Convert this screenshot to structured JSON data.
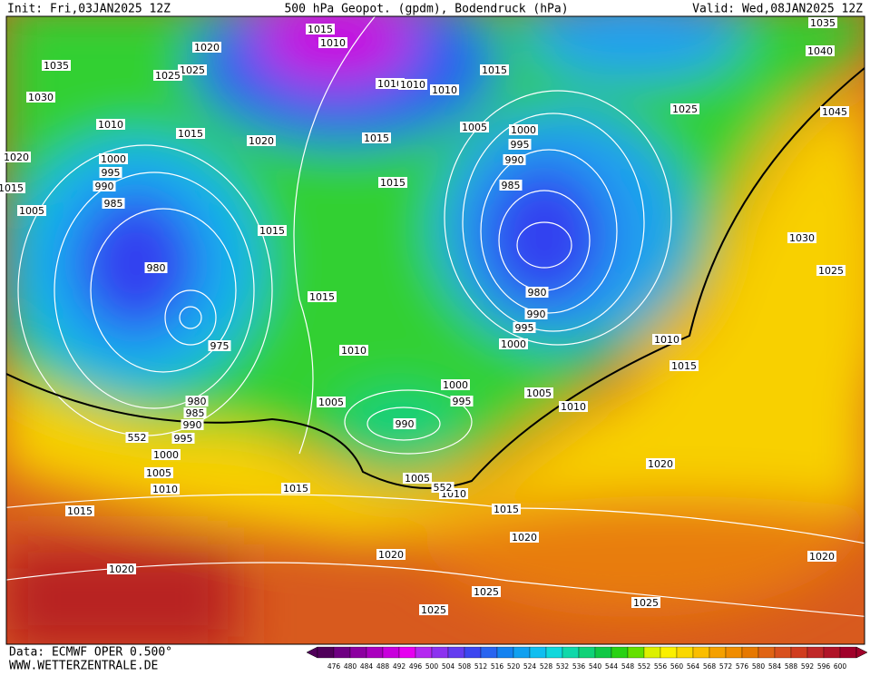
{
  "header": {
    "init": "Init: Fri,03JAN2025 12Z",
    "title": "500 hPa Geopot. (gpdm), Bodendruck (hPa)",
    "valid": "Valid: Wed,08JAN2025 12Z"
  },
  "footer": {
    "data": "Data: ECMWF OPER 0.500°",
    "site": "WWW.WETTERZENTRALE.DE"
  },
  "isobar_labels": [
    "1035",
    "1030",
    "1020",
    "1015",
    "1005",
    "1010",
    "1000",
    "995",
    "990",
    "985",
    "980",
    "975",
    "1020",
    "1025",
    "1025",
    "1015",
    "1020",
    "1015",
    "1010",
    "1015",
    "1015",
    "1015",
    "1010",
    "1010",
    "1010",
    "1015",
    "1005",
    "1000",
    "995",
    "990",
    "985",
    "980",
    "990",
    "995",
    "1000",
    "1015",
    "1010",
    "1005",
    "1000",
    "995",
    "990",
    "1005",
    "1010",
    "1010",
    "1015",
    "1020",
    "1025",
    "1035",
    "1040",
    "1045",
    "1030",
    "1025",
    "980",
    "985",
    "990",
    "995",
    "1000",
    "1005",
    "1010",
    "1015",
    "1015",
    "1005",
    "1010",
    "1015",
    "1020",
    "1020",
    "1020",
    "1025",
    "1025",
    "1025",
    "1020"
  ],
  "contour_labels": [
    "552",
    "552"
  ],
  "colorbar": {
    "labels": [
      476,
      480,
      484,
      488,
      492,
      496,
      500,
      504,
      508,
      512,
      516,
      520,
      524,
      528,
      532,
      536,
      540,
      544,
      548,
      552,
      556,
      560,
      564,
      568,
      572,
      576,
      580,
      584,
      588,
      592,
      596,
      600
    ],
    "colors": [
      "#50005a",
      "#6e0082",
      "#8c00a0",
      "#aa00be",
      "#c800dc",
      "#e600f0",
      "#b428f0",
      "#8c32f0",
      "#643cf0",
      "#3c46f0",
      "#2864f0",
      "#1482f0",
      "#10a0f0",
      "#10bef0",
      "#10d8dc",
      "#10d8aa",
      "#10d278",
      "#10c846",
      "#28d214",
      "#64e000",
      "#dcf000",
      "#faf000",
      "#fad800",
      "#fabe00",
      "#f5a000",
      "#f08c00",
      "#e67800",
      "#e06414",
      "#d8501e",
      "#d03c1e",
      "#c02828",
      "#b01428",
      "#a0002a"
    ]
  }
}
